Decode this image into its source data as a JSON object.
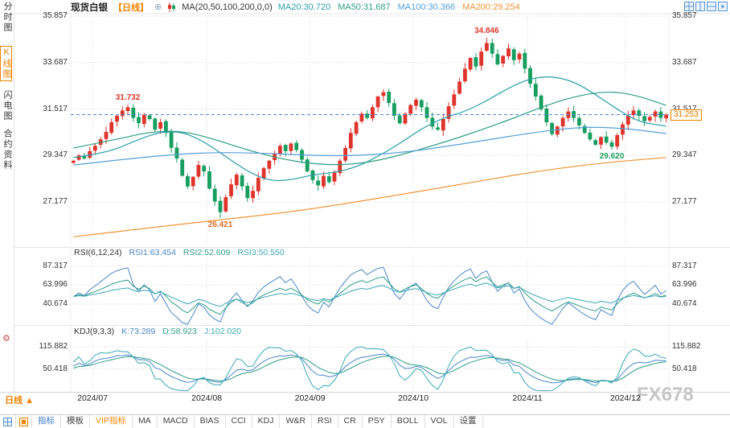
{
  "sidebar": {
    "items": [
      {
        "id": "time-chart",
        "label": "分时图",
        "active": false
      },
      {
        "id": "kline-chart",
        "label": "K线图",
        "active": true
      },
      {
        "id": "lightning-chart",
        "label": "闪电图",
        "active": false
      },
      {
        "id": "contract-info",
        "label": "合约资料",
        "active": false
      }
    ]
  },
  "header": {
    "symbol": "现货白银",
    "period": "【日线】",
    "expand_icon": "⊕",
    "ma_group_label": "MA(20,50,100,200,0,0)",
    "ma_items": [
      {
        "label": "MA20:30.720",
        "color": "#2b9faa"
      },
      {
        "label": "MA50:31.687",
        "color": "#2f9e86"
      },
      {
        "label": "MA100:30.366",
        "color": "#55a0d8"
      },
      {
        "label": "MA200:29.254",
        "color": "#ef9335"
      }
    ],
    "layout_icons": [
      "grid-layout-icon",
      "vertical-split-icon",
      "horizontal-split-icon",
      "next-pane-icon"
    ]
  },
  "chart_data": {
    "type": "candlestick",
    "title": "现货白银【日线】",
    "period": "日线",
    "y_ticks": [
      "35.857",
      "33.687",
      "31.517",
      "29.347",
      "27.177"
    ],
    "x_axis": {
      "labels": [
        {
          "text": "2024/07",
          "idx": 4
        },
        {
          "text": "2024/08",
          "idx": 25
        },
        {
          "text": "2024/09",
          "idx": 44
        },
        {
          "text": "2024/10",
          "idx": 63
        },
        {
          "text": "2024/11",
          "idx": 84
        },
        {
          "text": "2024/12",
          "idx": 102
        }
      ]
    },
    "first_open": 29.0,
    "closes": [
      29.1,
      29.35,
      29.2,
      29.55,
      29.8,
      30.1,
      30.45,
      30.9,
      31.2,
      31.45,
      31.6,
      31.1,
      30.85,
      31.25,
      31.05,
      30.55,
      30.9,
      30.4,
      29.7,
      29.2,
      28.4,
      27.9,
      28.35,
      28.9,
      28.6,
      27.8,
      27.2,
      26.7,
      27.4,
      28.0,
      28.45,
      27.9,
      27.35,
      27.7,
      28.3,
      28.75,
      29.1,
      29.45,
      29.8,
      29.55,
      29.9,
      29.6,
      29.15,
      28.6,
      28.2,
      27.95,
      28.4,
      28.1,
      28.55,
      29.1,
      29.7,
      30.4,
      30.9,
      31.3,
      31.1,
      31.6,
      32.1,
      32.3,
      31.8,
      31.2,
      30.85,
      31.3,
      31.7,
      31.95,
      31.6,
      31.1,
      30.7,
      30.55,
      31.05,
      31.65,
      32.2,
      32.8,
      33.4,
      33.9,
      33.5,
      34.2,
      34.6,
      34.1,
      33.6,
      34.0,
      34.35,
      33.8,
      34.1,
      33.4,
      32.7,
      32.1,
      31.5,
      30.9,
      30.35,
      30.7,
      31.1,
      31.4,
      31.1,
      30.75,
      30.4,
      30.1,
      29.85,
      30.2,
      29.95,
      29.75,
      30.3,
      30.8,
      31.2,
      31.45,
      31.2,
      30.95,
      31.15,
      31.4,
      31.1,
      31.253
    ],
    "extremes": {
      "10": {
        "high": 31.732
      },
      "27": {
        "low": 26.421
      },
      "76": {
        "high": 34.846
      },
      "99": {
        "low": 29.62
      }
    },
    "last_price": "31.253",
    "annotations": [
      {
        "text": "31.732",
        "idx": 10,
        "price": 31.732,
        "position": "above",
        "color": "#e0392f"
      },
      {
        "text": "34.846",
        "idx": 76,
        "price": 34.846,
        "position": "above",
        "color": "#e0392f"
      },
      {
        "text": "26.421",
        "idx": 27,
        "price": 26.421,
        "position": "below",
        "color": "#e06a2a"
      },
      {
        "text": "29.620",
        "idx": 99,
        "price": 29.62,
        "position": "below",
        "color": "#1fa05f"
      }
    ],
    "ma_lines": [
      {
        "name": "MA20",
        "color": "#2b9faa",
        "points": [
          [
            0,
            29.25
          ],
          [
            6,
            29.45
          ],
          [
            12,
            30.1
          ],
          [
            16,
            30.45
          ],
          [
            20,
            30.45
          ],
          [
            24,
            30.0
          ],
          [
            28,
            29.3
          ],
          [
            32,
            28.6
          ],
          [
            36,
            28.15
          ],
          [
            40,
            28.2
          ],
          [
            44,
            28.45
          ],
          [
            48,
            28.55
          ],
          [
            52,
            28.8
          ],
          [
            56,
            29.3
          ],
          [
            60,
            29.9
          ],
          [
            64,
            30.6
          ],
          [
            68,
            31.1
          ],
          [
            72,
            31.4
          ],
          [
            76,
            31.9
          ],
          [
            80,
            32.5
          ],
          [
            84,
            32.95
          ],
          [
            88,
            33.05
          ],
          [
            92,
            32.8
          ],
          [
            96,
            32.2
          ],
          [
            100,
            31.5
          ],
          [
            104,
            30.9
          ],
          [
            109,
            30.72
          ]
        ]
      },
      {
        "name": "MA50",
        "color": "#2f9e86",
        "points": [
          [
            0,
            29.7
          ],
          [
            8,
            30.1
          ],
          [
            14,
            30.45
          ],
          [
            20,
            30.5
          ],
          [
            26,
            30.1
          ],
          [
            32,
            29.6
          ],
          [
            38,
            29.2
          ],
          [
            44,
            28.95
          ],
          [
            50,
            28.9
          ],
          [
            56,
            29.1
          ],
          [
            62,
            29.5
          ],
          [
            68,
            29.95
          ],
          [
            74,
            30.45
          ],
          [
            80,
            31.0
          ],
          [
            86,
            31.6
          ],
          [
            92,
            32.1
          ],
          [
            98,
            32.35
          ],
          [
            103,
            32.2
          ],
          [
            109,
            31.69
          ]
        ]
      },
      {
        "name": "MA100",
        "color": "#55a0d8",
        "points": [
          [
            0,
            28.9
          ],
          [
            12,
            29.25
          ],
          [
            24,
            29.5
          ],
          [
            36,
            29.45
          ],
          [
            48,
            29.3
          ],
          [
            60,
            29.45
          ],
          [
            72,
            29.9
          ],
          [
            84,
            30.4
          ],
          [
            94,
            30.7
          ],
          [
            102,
            30.6
          ],
          [
            109,
            30.37
          ]
        ]
      },
      {
        "name": "MA200",
        "color": "#ef9335",
        "points": [
          [
            0,
            25.55
          ],
          [
            20,
            26.15
          ],
          [
            40,
            26.7
          ],
          [
            55,
            27.3
          ],
          [
            70,
            27.95
          ],
          [
            85,
            28.6
          ],
          [
            97,
            29.0
          ],
          [
            109,
            29.25
          ]
        ]
      }
    ],
    "up_color": "#df342c",
    "down_color": "#169e60",
    "grid_color": "#d8d8d8",
    "last_price_line_color": "#4f87d8"
  },
  "rsi_panel": {
    "title": "RSI(6,12,24)",
    "values": [
      {
        "label": "RSI1:63.454",
        "color": "#4a86c8",
        "period": 6
      },
      {
        "label": "RSI2:52.609",
        "color": "#2f9e86",
        "period": 12
      },
      {
        "label": "RSI3:50.550",
        "color": "#3aa8b8",
        "period": 24
      }
    ],
    "y_ticks": [
      "87.317",
      "63.996",
      "40.674"
    ],
    "range": [
      15,
      97
    ]
  },
  "kdj_panel": {
    "title": "KDJ(9,3,3)",
    "values": [
      {
        "label": "K:73.289",
        "color": "#4a86c8",
        "line": "k"
      },
      {
        "label": "D:58.923",
        "color": "#2f9e86",
        "line": "d"
      },
      {
        "label": "J:102.020",
        "color": "#3aa8b8",
        "line": "j"
      }
    ],
    "y_ticks": [
      "115.882",
      "50.418"
    ],
    "range": [
      -15,
      140
    ]
  },
  "footer": {
    "period_button": "日线",
    "period_arrow": "▲",
    "watermark": "FX678"
  },
  "toolbar": {
    "tabs": [
      {
        "id": "indicators",
        "label": "指标",
        "color": "#3a78c8"
      },
      {
        "id": "templates",
        "label": "模板",
        "color": "#444444"
      },
      {
        "id": "vip-indicators",
        "label": "VIP指标",
        "color": "#f08200"
      },
      {
        "id": "ma",
        "label": "MA",
        "color": "#444444"
      },
      {
        "id": "macd",
        "label": "MACD",
        "color": "#444444"
      },
      {
        "id": "bias",
        "label": "BIAS",
        "color": "#444444"
      },
      {
        "id": "cci",
        "label": "CCI",
        "color": "#444444"
      },
      {
        "id": "kdj",
        "label": "KDJ",
        "color": "#444444"
      },
      {
        "id": "wr",
        "label": "W&R",
        "color": "#444444"
      },
      {
        "id": "rsi",
        "label": "RSI",
        "color": "#444444"
      },
      {
        "id": "cr",
        "label": "CR",
        "color": "#444444"
      },
      {
        "id": "psy",
        "label": "PSY",
        "color": "#444444"
      },
      {
        "id": "boll",
        "label": "BOLL",
        "color": "#444444"
      },
      {
        "id": "vol",
        "label": "VOL",
        "color": "#444444"
      },
      {
        "id": "settings",
        "label": "设置",
        "color": "#444444"
      }
    ]
  }
}
